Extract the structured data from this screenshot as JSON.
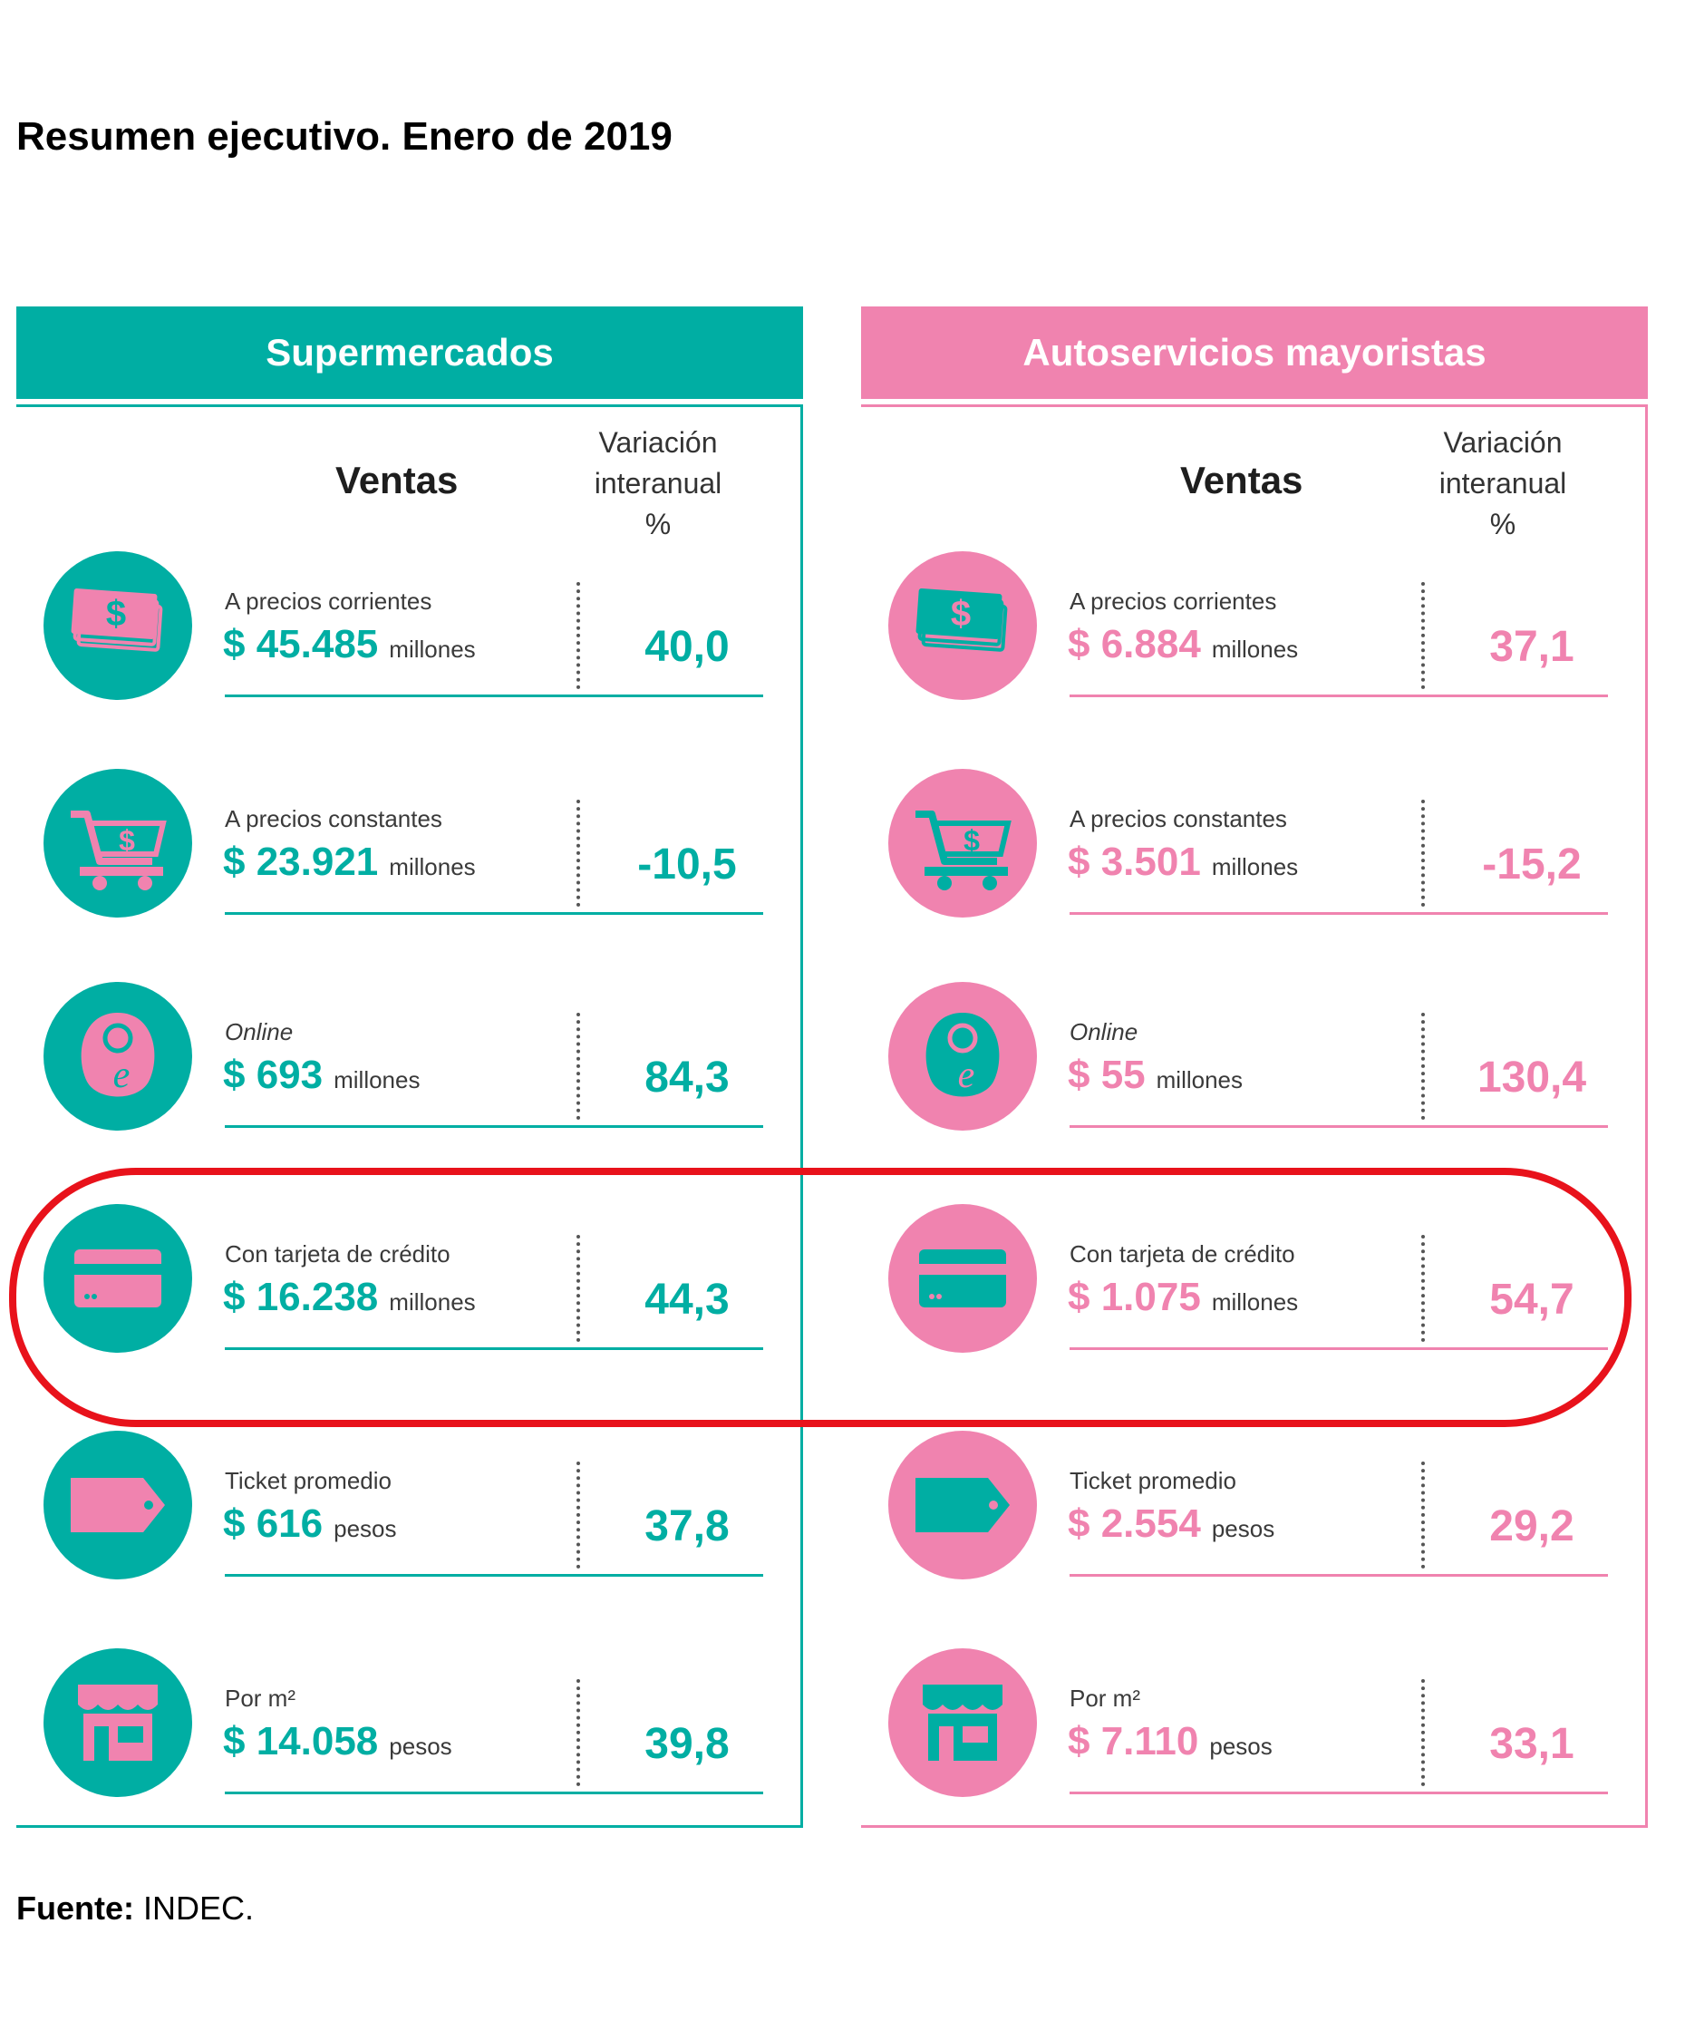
{
  "title": "Resumen ejecutivo. Enero de 2019",
  "source": {
    "label": "Fuente:",
    "text": " INDEC."
  },
  "colors": {
    "teal": "#00AEA3",
    "pink": "#F083AF",
    "highlight": "#E8121B"
  },
  "panels": [
    {
      "header": "Supermercados",
      "col_ventas": "Ventas",
      "col_var_lines": [
        "Variación",
        "interanual",
        "%"
      ],
      "rows": [
        {
          "icon": "cash-icon",
          "label": "A precios corrientes",
          "value": "$ 45.485",
          "unit": "millones",
          "pct": "40,0"
        },
        {
          "icon": "cart-icon",
          "label": "A precios constantes",
          "value": "$ 23.921",
          "unit": "millones",
          "pct": "-10,5"
        },
        {
          "icon": "online-tag-icon",
          "label": "Online",
          "value": "$ 693",
          "unit": "millones",
          "pct": "84,3"
        },
        {
          "icon": "credit-card-icon",
          "label": "Con tarjeta de crédito",
          "value": "$ 16.238",
          "unit": "millones",
          "pct": "44,3"
        },
        {
          "icon": "ticket-tag-icon",
          "label": "Ticket promedio",
          "value": "$ 616",
          "unit": "pesos",
          "pct": "37,8"
        },
        {
          "icon": "store-icon",
          "label": "Por m²",
          "value": "$ 14.058",
          "unit": "pesos",
          "pct": "39,8"
        }
      ]
    },
    {
      "header": "Autoservicios mayoristas",
      "col_ventas": "Ventas",
      "col_var_lines": [
        "Variación",
        "interanual",
        "%"
      ],
      "rows": [
        {
          "icon": "cash-icon",
          "label": "A precios corrientes",
          "value": "$ 6.884",
          "unit": "millones",
          "pct": "37,1"
        },
        {
          "icon": "cart-icon",
          "label": "A precios constantes",
          "value": "$ 3.501",
          "unit": "millones",
          "pct": "-15,2"
        },
        {
          "icon": "online-tag-icon",
          "label": "Online",
          "value": "$ 55",
          "unit": "millones",
          "pct": "130,4"
        },
        {
          "icon": "credit-card-icon",
          "label": "Con tarjeta de crédito",
          "value": "$ 1.075",
          "unit": "millones",
          "pct": "54,7"
        },
        {
          "icon": "ticket-tag-icon",
          "label": "Ticket promedio",
          "value": "$ 2.554",
          "unit": "pesos",
          "pct": "29,2"
        },
        {
          "icon": "store-icon",
          "label": "Por m²",
          "value": "$ 7.110",
          "unit": "pesos",
          "pct": "33,1"
        }
      ]
    }
  ]
}
